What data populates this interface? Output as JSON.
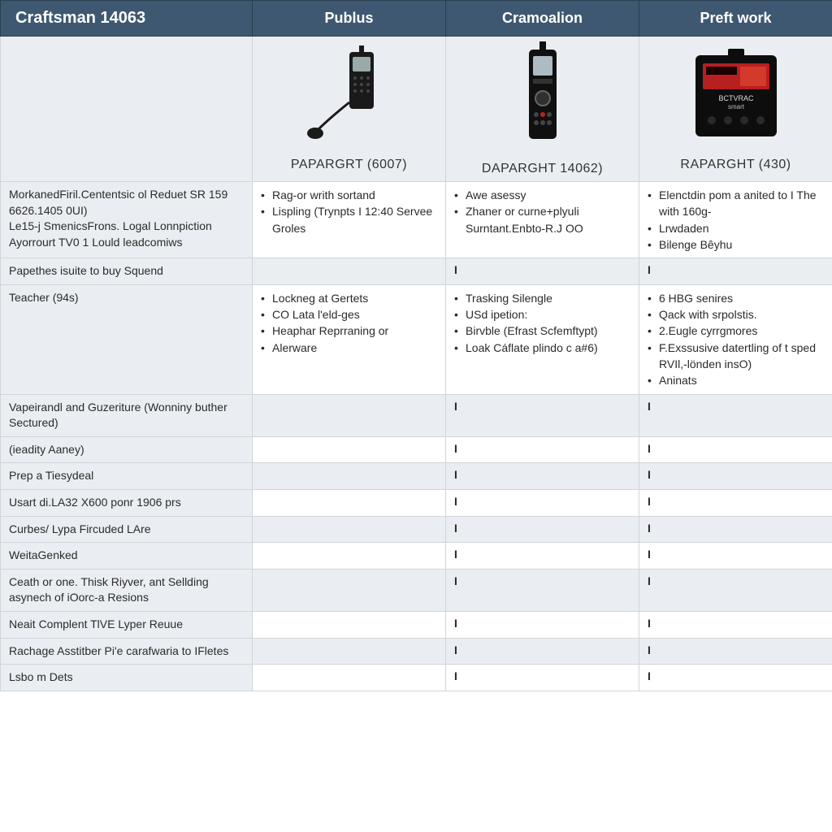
{
  "header": {
    "main": "Craftsman 14063",
    "col1": "Publus",
    "col2": "Cramoalion",
    "col3": "Preft work"
  },
  "products": {
    "p1_model": "PAPARGRT (6007)",
    "p2_model": "DAPARGHT 14062)",
    "p3_model": "RAPARGHT (430)"
  },
  "rows": {
    "r1": {
      "label": "MorkanedFiril.Cententsic ol Reduet SR 159 6626.1405 0UI)\nLe15-j SmenicsFrons. Logal Lonnpiction Ayorrourt TV0 1 Lould leadcomiws",
      "c1": [
        "Rag-or writh sortand",
        "Lispling (Trynpts I 12:40 Servee Groles"
      ],
      "c2": [
        "Awe asessy",
        "Zhaner or curne+plyuli Surntant.Enbto-R.J OO"
      ],
      "c3": [
        "Elenctdin pom a anited to I The with 160g-",
        "Lrwdaden",
        "Bilenge Bêyhu"
      ]
    },
    "r2": {
      "label": "Papethes isuite to buy Squend",
      "c1": "",
      "c2": "I",
      "c3": "I"
    },
    "r3": {
      "label": "Teacher (94s)",
      "c1": [
        "Lockneg at Gertets",
        "CO Lata l'eld-ges",
        "Heaphar Reprraning or",
        "Alerware"
      ],
      "c2": [
        "Trasking Silengle",
        "USd ipetion:",
        "Birvble (Efrast Scfemftypt)",
        "Loak Cáflate plindo c a#6)"
      ],
      "c3": [
        "6 HBG senires",
        "Qack with srpolstis.",
        "2.Eugle cyrrgmores",
        "F.Exssusive datertling of t sped RVIl,-lönden insO)",
        "Aninats"
      ]
    },
    "r4": {
      "label": "Vapeirandl and Guzeriture (Wonniny buther Sectured)",
      "c1": "",
      "c2": "I",
      "c3": "I"
    },
    "r5": {
      "label": "(ieadity Aaney)",
      "c1": "",
      "c2": "I",
      "c3": "I"
    },
    "r6": {
      "label": "Prep a Tiesydeal",
      "c1": "",
      "c2": "I",
      "c3": "I"
    },
    "r7": {
      "label": "Usart di.LA32 X600 ponr 1906 prs",
      "c1": "",
      "c2": "I",
      "c3": "I"
    },
    "r8": {
      "label": "Curbes/ Lypa Fircuded LAre",
      "c1": "",
      "c2": "I",
      "c3": "I"
    },
    "r9": {
      "label": "WeitaGenked",
      "c1": "",
      "c2": "I",
      "c3": "I"
    },
    "r10": {
      "label": "Ceath or one. Thisk Riyver, ant Sellding asynech of iOorc-a Resions",
      "c1": "",
      "c2": "I",
      "c3": "I"
    },
    "r11": {
      "label": "Neait Complent TlVE Lyper Reuue",
      "c1": "",
      "c2": "I",
      "c3": "I"
    },
    "r12": {
      "label": "Rachage Asstitber Pi'e carafwaria to IFletes",
      "c1": "",
      "c2": "I",
      "c3": "I"
    },
    "r13": {
      "label": "Lsbo m Dets",
      "c1": "",
      "c2": "I",
      "c3": "I"
    }
  },
  "style": {
    "header_bg": "#3e5871",
    "header_fg": "#ffffff",
    "row_alt_bg": "#eaeef2",
    "row_bg": "#ffffff",
    "border": "#d0d5da",
    "text": "#2a2a2a",
    "label_col_width": 310,
    "prod_col_width": 238,
    "font_family": "Arial",
    "header_fontsize": 18,
    "body_fontsize": 14
  }
}
